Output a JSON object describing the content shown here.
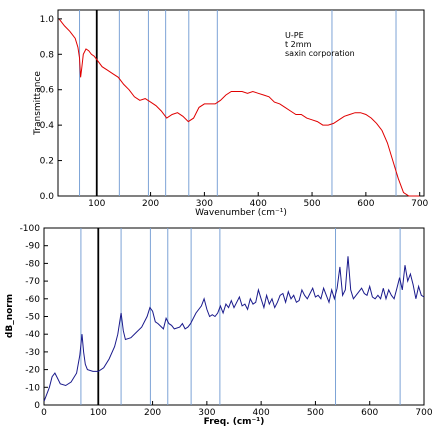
{
  "chart_data": [
    {
      "type": "line",
      "title": "",
      "xlabel": "Wavenumber (cm⁻¹)",
      "ylabel": "Transmittance",
      "xlim": [
        28,
        708
      ],
      "ylim": [
        0.0,
        1.05
      ],
      "x_ticks": [
        "100",
        "200",
        "300",
        "400",
        "500",
        "600",
        "700"
      ],
      "y_ticks": [
        "0.0",
        "0.2",
        "0.4",
        "0.6",
        "0.8",
        "1.0"
      ],
      "annotation": [
        "U-PE",
        "t 2mm",
        "saxin corporation"
      ],
      "grid": false,
      "series": [
        {
          "color": "#e00000",
          "x": [
            30,
            40,
            50,
            60,
            65,
            68,
            70,
            72,
            75,
            80,
            85,
            90,
            95,
            100,
            110,
            120,
            130,
            140,
            150,
            160,
            170,
            180,
            190,
            200,
            210,
            220,
            230,
            240,
            250,
            260,
            270,
            280,
            290,
            300,
            310,
            320,
            330,
            340,
            350,
            360,
            370,
            380,
            390,
            400,
            410,
            420,
            430,
            440,
            450,
            460,
            470,
            480,
            490,
            500,
            510,
            520,
            530,
            540,
            550,
            560,
            570,
            580,
            590,
            600,
            610,
            620,
            630,
            640,
            650,
            660,
            670,
            680,
            690,
            700
          ],
          "y": [
            1.0,
            0.96,
            0.93,
            0.89,
            0.84,
            0.78,
            0.67,
            0.72,
            0.8,
            0.83,
            0.82,
            0.8,
            0.79,
            0.77,
            0.73,
            0.71,
            0.69,
            0.67,
            0.63,
            0.6,
            0.56,
            0.54,
            0.55,
            0.53,
            0.51,
            0.48,
            0.44,
            0.46,
            0.47,
            0.45,
            0.42,
            0.44,
            0.5,
            0.52,
            0.52,
            0.52,
            0.54,
            0.57,
            0.59,
            0.59,
            0.59,
            0.58,
            0.59,
            0.58,
            0.57,
            0.56,
            0.53,
            0.52,
            0.5,
            0.48,
            0.46,
            0.46,
            0.44,
            0.43,
            0.42,
            0.4,
            0.4,
            0.41,
            0.43,
            0.45,
            0.46,
            0.47,
            0.47,
            0.46,
            0.44,
            0.41,
            0.37,
            0.3,
            0.2,
            0.1,
            0.02,
            0.0,
            0.0,
            0.0
          ]
        }
      ]
    },
    {
      "type": "line",
      "title": "",
      "xlabel": "Freq. (cm⁻¹)",
      "ylabel": "dB_norm",
      "xlim": [
        0,
        700
      ],
      "ylim": [
        0,
        -100
      ],
      "x_ticks": [
        "0",
        "100",
        "200",
        "300",
        "400",
        "500",
        "600",
        "700"
      ],
      "y_ticks": [
        "0",
        "-10",
        "-20",
        "-30",
        "-40",
        "-50",
        "-60",
        "-70",
        "-80",
        "-90",
        "-100"
      ],
      "grid": false,
      "series": [
        {
          "color": "#1a1a8c",
          "x": [
            0,
            10,
            15,
            20,
            25,
            30,
            40,
            50,
            60,
            66,
            70,
            73,
            76,
            80,
            90,
            100,
            110,
            120,
            130,
            136,
            142,
            146,
            150,
            160,
            170,
            180,
            190,
            195,
            200,
            205,
            210,
            220,
            225,
            230,
            235,
            240,
            250,
            255,
            260,
            265,
            270,
            280,
            290,
            295,
            300,
            305,
            310,
            315,
            320,
            325,
            330,
            335,
            340,
            345,
            350,
            355,
            360,
            365,
            370,
            375,
            380,
            385,
            390,
            395,
            400,
            405,
            410,
            415,
            420,
            425,
            430,
            435,
            440,
            445,
            450,
            455,
            460,
            465,
            470,
            475,
            480,
            485,
            490,
            495,
            500,
            505,
            510,
            515,
            520,
            525,
            530,
            535,
            540,
            545,
            550,
            555,
            560,
            565,
            570,
            575,
            580,
            585,
            590,
            595,
            600,
            605,
            610,
            615,
            620,
            625,
            630,
            635,
            640,
            645,
            650,
            655,
            660,
            665,
            670,
            675,
            680,
            685,
            690,
            695,
            700
          ],
          "y": [
            -2,
            -10,
            -16,
            -18,
            -15,
            -12,
            -11,
            -13,
            -18,
            -28,
            -40,
            -30,
            -23,
            -20,
            -19,
            -19,
            -21,
            -26,
            -33,
            -40,
            -52,
            -42,
            -37,
            -38,
            -41,
            -44,
            -50,
            -55,
            -53,
            -47,
            -46,
            -43,
            -49,
            -46,
            -45,
            -43,
            -44,
            -46,
            -43,
            -44,
            -46,
            -52,
            -56,
            -60,
            -54,
            -50,
            -51,
            -50,
            -52,
            -56,
            -52,
            -57,
            -55,
            -59,
            -55,
            -58,
            -61,
            -56,
            -57,
            -54,
            -60,
            -57,
            -58,
            -65,
            -60,
            -55,
            -62,
            -57,
            -60,
            -55,
            -58,
            -62,
            -63,
            -58,
            -64,
            -60,
            -62,
            -58,
            -59,
            -65,
            -62,
            -60,
            -63,
            -66,
            -61,
            -62,
            -60,
            -66,
            -62,
            -58,
            -65,
            -60,
            -66,
            -78,
            -62,
            -65,
            -84,
            -65,
            -60,
            -62,
            -64,
            -66,
            -63,
            -62,
            -67,
            -61,
            -60,
            -62,
            -60,
            -66,
            -60,
            -65,
            -62,
            -60,
            -66,
            -72,
            -65,
            -79,
            -70,
            -74,
            -68,
            -60,
            -67,
            -62,
            -61
          ]
        }
      ]
    }
  ]
}
